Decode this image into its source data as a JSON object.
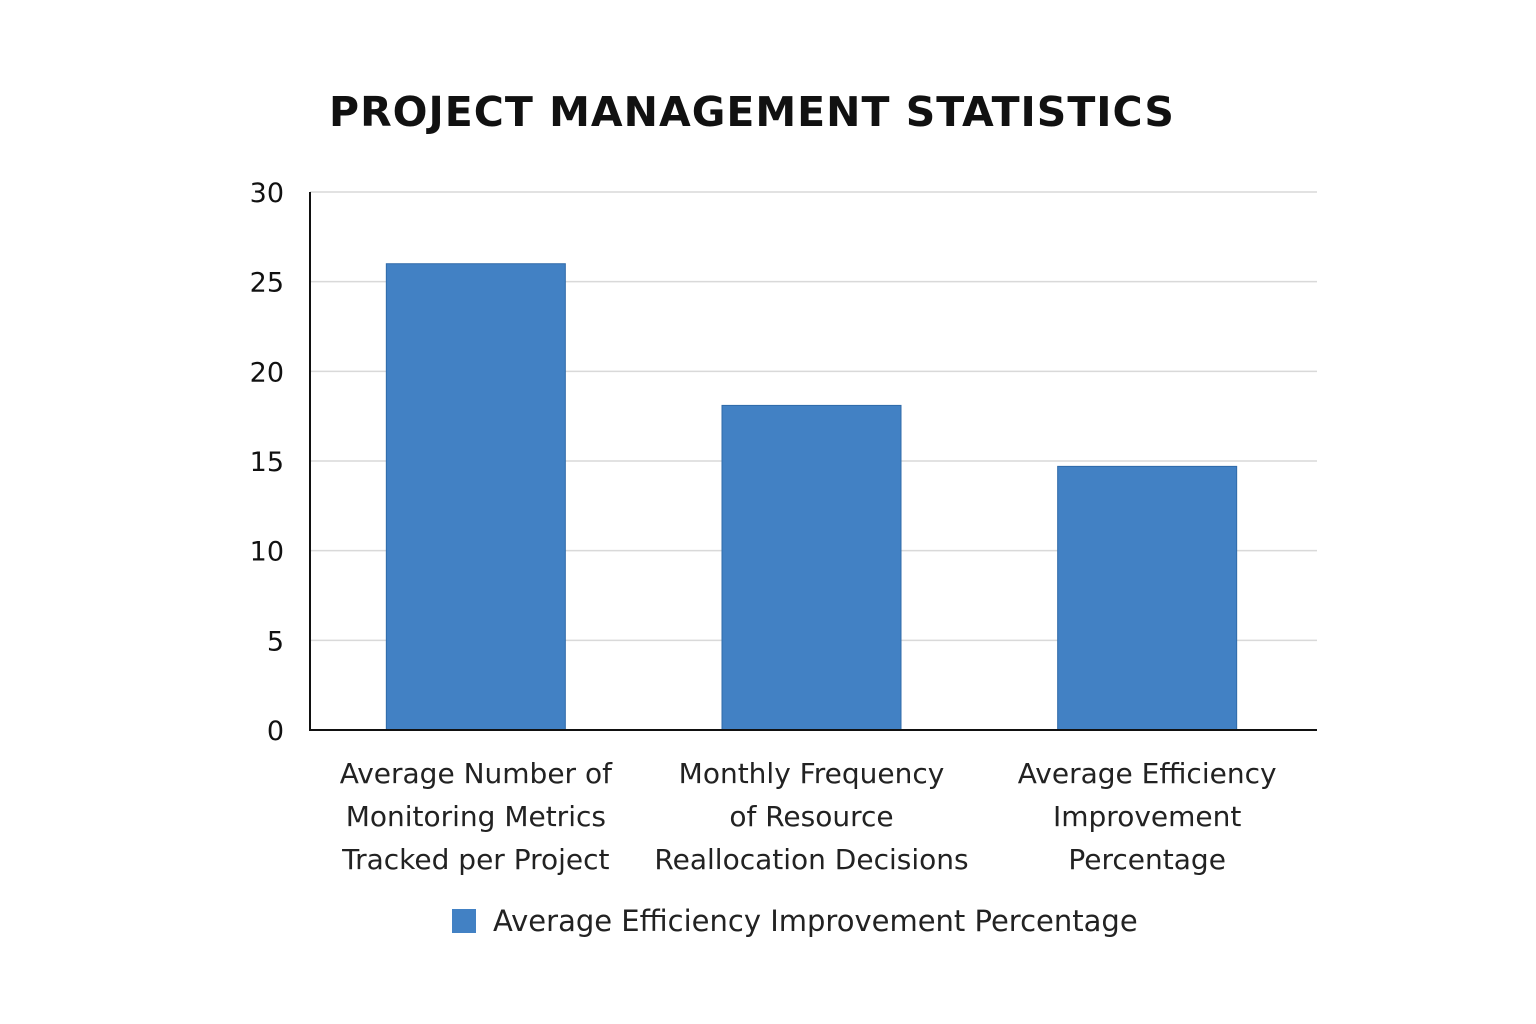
{
  "chart_data": {
    "type": "bar",
    "title": "PROJECT MANAGEMENT STATISTICS",
    "categories": [
      [
        "Average Number of",
        "Monitoring Metrics",
        "Tracked per Project"
      ],
      [
        "Monthly Frequency",
        "of Resource",
        "Reallocation Decisions"
      ],
      [
        "Average Efficiency",
        "Improvement",
        "Percentage"
      ]
    ],
    "series": [
      {
        "name": "Average Efficiency Improvement Percentage",
        "color": "#4281c4",
        "values": [
          26,
          18.1,
          14.7
        ]
      }
    ],
    "ylim": [
      0,
      30
    ],
    "yticks": [
      0,
      5,
      10,
      15,
      20,
      25,
      30
    ],
    "grid": true,
    "legend_position": "bottom"
  }
}
